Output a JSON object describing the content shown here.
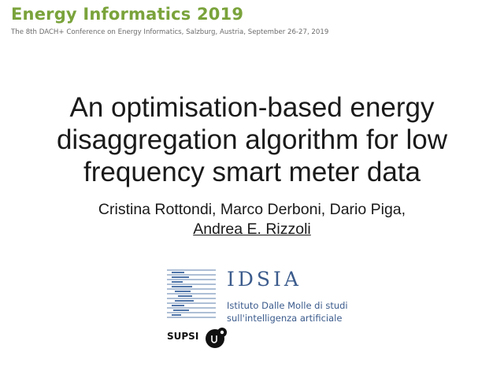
{
  "header": {
    "conference_title": "Energy Informatics 2019",
    "conference_subtitle": "The 8th DACH+ Conference on Energy Informatics, Salzburg, Austria, September 26-27, 2019"
  },
  "slide": {
    "title_lines": [
      "An optimisation-based energy",
      "disaggregation algorithm for low",
      "frequency smart meter data"
    ],
    "authors_line1": "Cristina Rottondi, Marco Derboni, Dario Piga,",
    "presenter": "Andrea E. Rizzoli"
  },
  "logos": {
    "idsia_name": "IDSIA",
    "idsia_desc_line1": "Istituto Dalle Molle di studi",
    "idsia_desc_line2": "sull'intelligenza artificiale",
    "supsi_name": "SUPSI"
  },
  "colors": {
    "conference_green": "#7aa33b",
    "idsia_blue": "#3b5b8c"
  }
}
